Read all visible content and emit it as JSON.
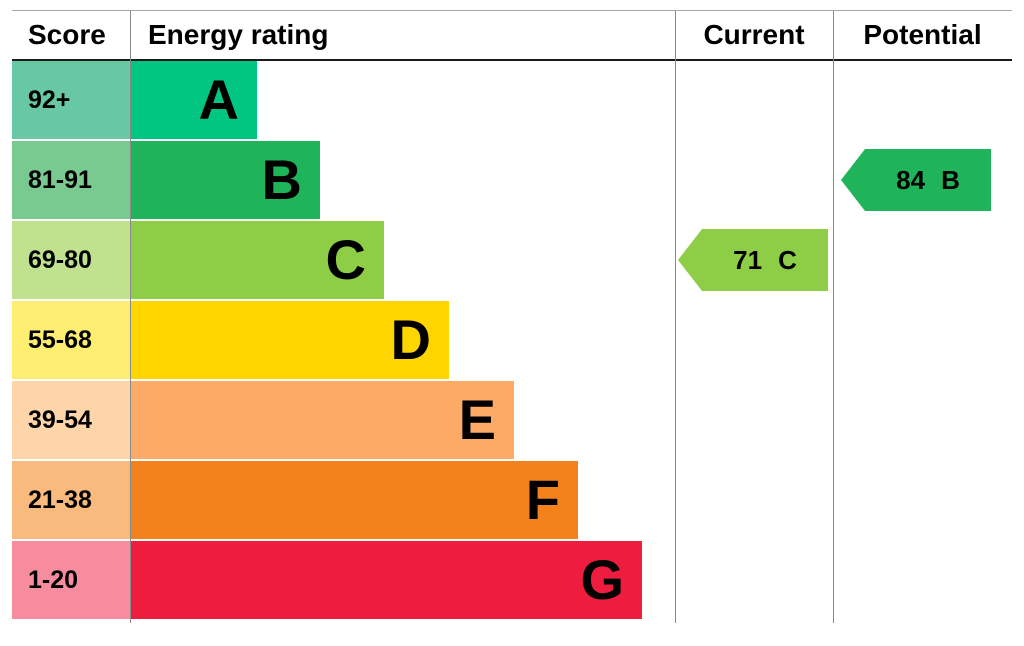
{
  "chart_data": {
    "type": "bar",
    "columns": [
      "Score",
      "Energy rating",
      "Current",
      "Potential"
    ],
    "bands": [
      {
        "letter": "A",
        "score_range": "92+",
        "color": "#00c681",
        "tint": "#67c8a3"
      },
      {
        "letter": "B",
        "score_range": "81-91",
        "color": "#1fb35a",
        "tint": "#79ca90"
      },
      {
        "letter": "C",
        "score_range": "69-80",
        "color": "#8dce46",
        "tint": "#c0e18e"
      },
      {
        "letter": "D",
        "score_range": "55-68",
        "color": "#ffd500",
        "tint": "#fdee72"
      },
      {
        "letter": "E",
        "score_range": "39-54",
        "color": "#fcaa65",
        "tint": "#fdd5a9"
      },
      {
        "letter": "F",
        "score_range": "21-38",
        "color": "#f3821d",
        "tint": "#f8bb7d"
      },
      {
        "letter": "G",
        "score_range": "1-20",
        "color": "#ee1c3f",
        "tint": "#f68c9d"
      }
    ],
    "current": {
      "value": "71",
      "band": "C",
      "color": "#8dce46"
    },
    "potential": {
      "value": "84",
      "band": "B",
      "color": "#1fb35a"
    },
    "legend_position": "none",
    "grid": false
  }
}
